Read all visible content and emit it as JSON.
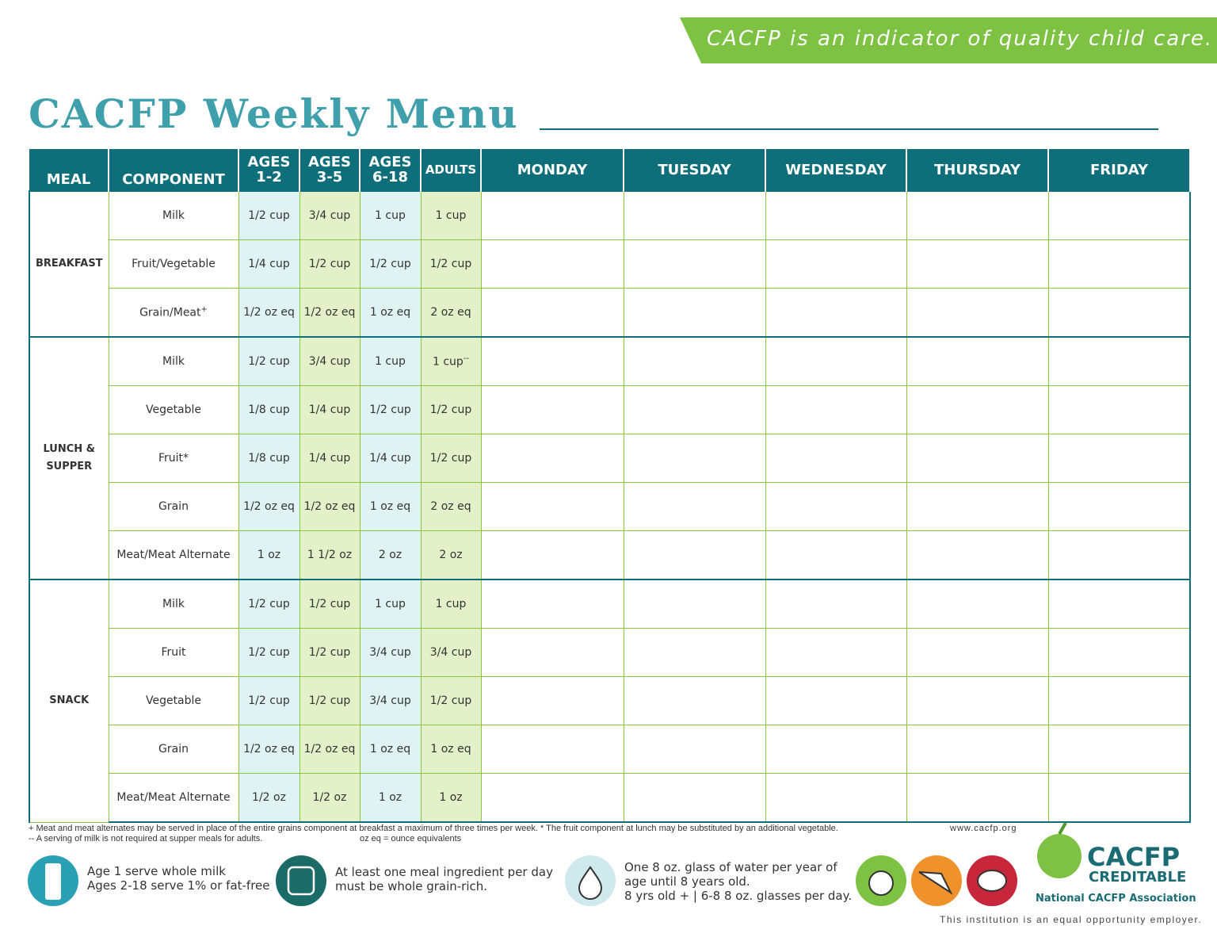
{
  "banner": "CACFP is an indicator of quality child care.",
  "title": "CACFP Weekly Menu",
  "table": {
    "header": [
      "MEAL",
      "COMPONENT",
      "AGES 1-2",
      "AGES 3-5",
      "AGES 6-18",
      "ADULTS",
      "MONDAY",
      "TUESDAY",
      "WEDNESDAY",
      "THURSDAY",
      "FRIDAY"
    ],
    "groups": [
      {
        "meal": "BREAKFAST",
        "rows": [
          {
            "component": "Milk",
            "values": [
              "1/2 cup",
              "3/4 cup",
              "1 cup",
              "1 cup"
            ]
          },
          {
            "component": "Fruit/Vegetable",
            "values": [
              "1/4 cup",
              "1/2 cup",
              "1/2 cup",
              "1/2 cup"
            ]
          },
          {
            "component": "Grain/Meat",
            "sup": "+",
            "values": [
              "1/2 oz eq",
              "1/2 oz eq",
              "1 oz eq",
              "2 oz eq"
            ]
          }
        ]
      },
      {
        "meal": "LUNCH & SUPPER",
        "rows": [
          {
            "component": "Milk",
            "values": [
              "1/2 cup",
              "3/4 cup",
              "1 cup",
              {
                "text": "1 cup",
                "sup": "--"
              }
            ]
          },
          {
            "component": "Vegetable",
            "values": [
              "1/8 cup",
              "1/4 cup",
              "1/2 cup",
              "1/2 cup"
            ]
          },
          {
            "component": "Fruit*",
            "values": [
              "1/8 cup",
              "1/4 cup",
              "1/4 cup",
              "1/2 cup"
            ]
          },
          {
            "component": "Grain",
            "values": [
              "1/2 oz eq",
              "1/2 oz eq",
              "1 oz eq",
              "2 oz eq"
            ]
          },
          {
            "component": "Meat/Meat Alternate",
            "values": [
              "1 oz",
              "1 1/2 oz",
              "2 oz",
              "2 oz"
            ]
          }
        ]
      },
      {
        "meal": "SNACK",
        "rows": [
          {
            "component": "Milk",
            "values": [
              "1/2 cup",
              "1/2 cup",
              "1 cup",
              "1 cup"
            ]
          },
          {
            "component": "Fruit",
            "values": [
              "1/2 cup",
              "1/2 cup",
              "3/4 cup",
              "3/4 cup"
            ]
          },
          {
            "component": "Vegetable",
            "values": [
              "1/2 cup",
              "1/2 cup",
              "3/4 cup",
              "1/2 cup"
            ]
          },
          {
            "component": "Grain",
            "values": [
              "1/2 oz eq",
              "1/2 oz eq",
              "1 oz eq",
              "1 oz eq"
            ]
          },
          {
            "component": "Meat/Meat Alternate",
            "values": [
              "1/2 oz",
              "1/2 oz",
              "1 oz",
              "1 oz"
            ]
          }
        ]
      }
    ]
  },
  "footnotes": {
    "line1": "+ Meat and meat alternates may be served in place of the entire grains component at breakfast a maximum of three times per week.  * The fruit component at lunch may be substituted by an additional vegetable.",
    "website": "www.cacfp.org",
    "line2": "-- A serving of milk is not required at supper meals for adults.",
    "legend": "oz eq = ounce equivalents"
  },
  "tips": [
    [
      "Age 1 serve whole milk",
      "Ages 2-18 serve 1% or fat-free"
    ],
    [
      "At least one meal ingredient per day",
      "must be whole grain-rich."
    ],
    [
      "One 8 oz. glass of water per year of",
      "age until 8 years old.",
      "8 yrs old + | 6-8 8 oz. glasses per day."
    ]
  ],
  "logo": {
    "name": "CACFP",
    "tag": "CREDITABLE",
    "org": "National CACFP Association"
  },
  "eoe": "This institution is an equal opportunity employer."
}
